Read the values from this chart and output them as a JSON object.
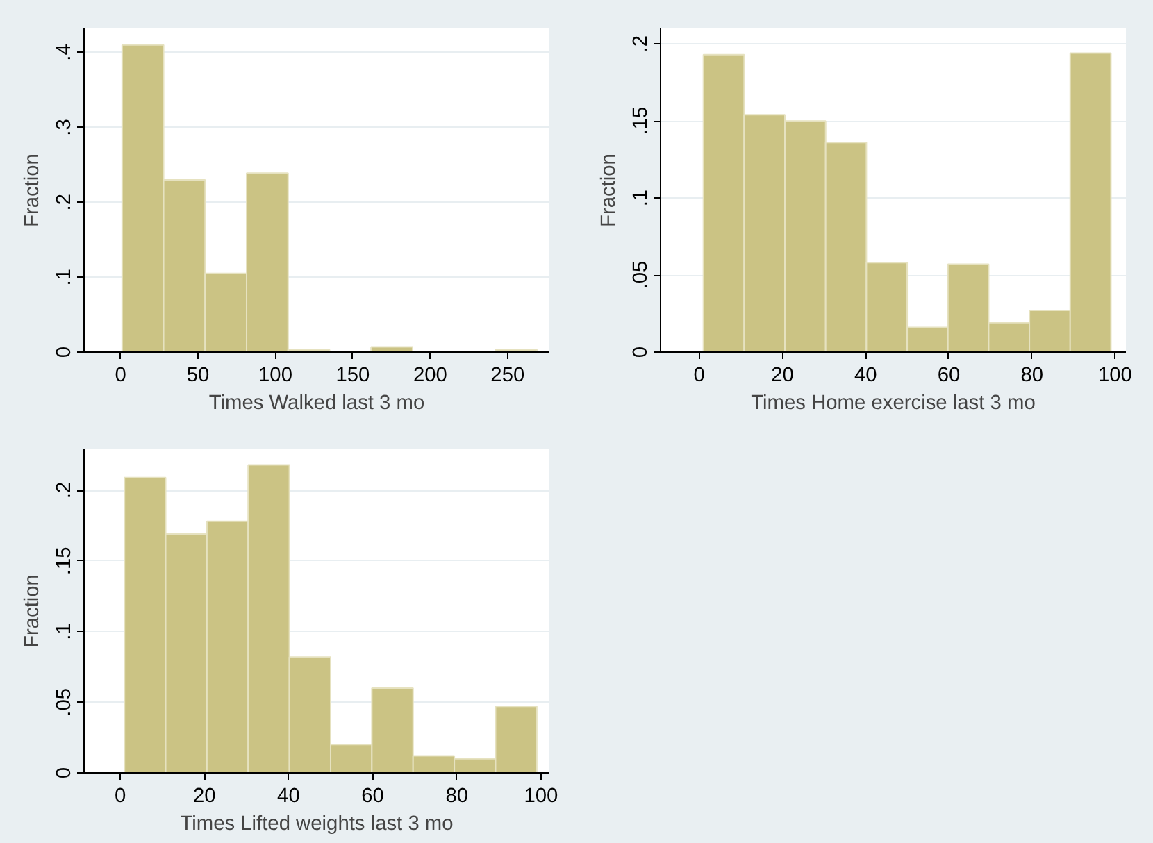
{
  "chart_data": [
    {
      "type": "histogram",
      "xlabel": "Times Walked last 3 mo",
      "ylabel": "Fraction",
      "color": "#cbc384",
      "grid": "y",
      "bins": [
        1,
        27.8,
        54.6,
        81.4,
        108.2,
        135,
        161.8,
        188.6,
        215.4,
        242.2,
        269
      ],
      "values": [
        0.41,
        0.23,
        0.105,
        0.239,
        0.003,
        null,
        0.007,
        null,
        null,
        0.003
      ],
      "xlim": [
        -23.6,
        277
      ],
      "ylim": [
        0,
        0.432
      ],
      "xticks": [
        0,
        50,
        100,
        150,
        200,
        250
      ],
      "yticks": [
        0,
        {
          "value": 0.1,
          "label": ".1"
        },
        {
          "value": 0.2,
          "label": ".2"
        },
        {
          "value": 0.3,
          "label": ".3"
        },
        {
          "value": 0.4,
          "label": ".4"
        }
      ]
    },
    {
      "type": "histogram",
      "xlabel": "Times Home exercise last 3 mo",
      "ylabel": "Fraction",
      "color": "#cbc384",
      "grid": "y",
      "bins": [
        1,
        10.8,
        20.6,
        30.4,
        40.2,
        50,
        59.8,
        69.6,
        79.4,
        89.2,
        99
      ],
      "values": [
        0.193,
        0.154,
        0.15,
        0.136,
        0.058,
        0.016,
        0.057,
        0.019,
        0.027,
        0.194
      ],
      "xlim": [
        -9.3,
        102.6
      ],
      "ylim": [
        0,
        0.21
      ],
      "xticks": [
        0,
        20,
        40,
        60,
        80,
        100
      ],
      "yticks": [
        0,
        {
          "value": 0.05,
          "label": ".05"
        },
        {
          "value": 0.1,
          "label": ".1"
        },
        {
          "value": 0.15,
          "label": ".15"
        },
        {
          "value": 0.2,
          "label": ".2"
        }
      ]
    },
    {
      "type": "histogram",
      "xlabel": "Times Lifted weights last 3 mo",
      "ylabel": "Fraction",
      "color": "#cbc384",
      "grid": "y",
      "bins": [
        1,
        10.8,
        20.6,
        30.4,
        40.2,
        50,
        59.8,
        69.6,
        79.4,
        89.2,
        99
      ],
      "values": [
        0.209,
        0.169,
        0.178,
        0.218,
        0.082,
        0.02,
        0.06,
        0.012,
        0.01,
        0.047
      ],
      "xlim": [
        -8.6,
        102
      ],
      "ylim": [
        0,
        0.229
      ],
      "xticks": [
        0,
        20,
        40,
        60,
        80,
        100
      ],
      "yticks": [
        0,
        {
          "value": 0.05,
          "label": ".05"
        },
        {
          "value": 0.1,
          "label": ".1"
        },
        {
          "value": 0.15,
          "label": ".15"
        },
        {
          "value": 0.2,
          "label": ".2"
        }
      ]
    }
  ]
}
